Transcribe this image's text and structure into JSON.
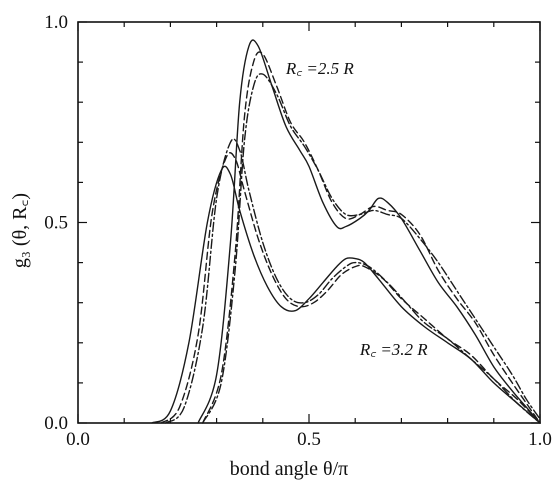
{
  "chart_data": {
    "type": "line",
    "xlabel": "bond angle θ/π",
    "ylabel": "g₃ (θ, R꜀)",
    "xlim": [
      0.0,
      1.0
    ],
    "ylim": [
      0.0,
      1.0
    ],
    "grid": false,
    "x_ticks": [
      "0.0",
      "0.5",
      "1.0"
    ],
    "y_ticks": [
      "0.0",
      "0.5",
      "1.0"
    ],
    "annotations": [
      {
        "text": "R꜀ =2.5 R",
        "x": 0.45,
        "y": 0.87
      },
      {
        "text": "R꜀ =3.2 R",
        "x": 0.61,
        "y": 0.17
      }
    ],
    "series": [
      {
        "group": "Rc=2.5R",
        "style": "solid",
        "x": [
          0.26,
          0.3,
          0.33,
          0.35,
          0.37,
          0.39,
          0.42,
          0.45,
          0.48,
          0.5,
          0.53,
          0.56,
          0.58,
          0.61,
          0.63,
          0.65,
          0.67,
          0.7,
          0.74,
          0.78,
          0.82,
          0.86,
          0.9,
          0.94,
          0.97,
          1.0
        ],
        "y": [
          0.0,
          0.12,
          0.45,
          0.8,
          0.94,
          0.94,
          0.84,
          0.74,
          0.68,
          0.64,
          0.55,
          0.49,
          0.49,
          0.51,
          0.53,
          0.56,
          0.55,
          0.51,
          0.43,
          0.35,
          0.29,
          0.22,
          0.14,
          0.08,
          0.04,
          0.0
        ]
      },
      {
        "group": "Rc=2.5R",
        "style": "dash",
        "x": [
          0.27,
          0.31,
          0.34,
          0.36,
          0.38,
          0.4,
          0.43,
          0.46,
          0.49,
          0.52,
          0.55,
          0.58,
          0.61,
          0.64,
          0.67,
          0.7,
          0.74,
          0.78,
          0.82,
          0.86,
          0.9,
          0.94,
          0.97,
          1.0
        ],
        "y": [
          0.0,
          0.12,
          0.42,
          0.76,
          0.9,
          0.92,
          0.84,
          0.75,
          0.7,
          0.63,
          0.55,
          0.51,
          0.52,
          0.54,
          0.53,
          0.52,
          0.47,
          0.38,
          0.31,
          0.25,
          0.17,
          0.1,
          0.05,
          0.0
        ]
      },
      {
        "group": "Rc=2.5R",
        "style": "dashdot",
        "x": [
          0.27,
          0.31,
          0.34,
          0.36,
          0.38,
          0.4,
          0.43,
          0.46,
          0.49,
          0.52,
          0.55,
          0.58,
          0.61,
          0.64,
          0.67,
          0.7,
          0.74,
          0.78,
          0.82,
          0.86,
          0.9,
          0.94,
          0.97,
          1.0
        ],
        "y": [
          0.0,
          0.1,
          0.38,
          0.7,
          0.84,
          0.87,
          0.82,
          0.74,
          0.69,
          0.63,
          0.56,
          0.52,
          0.52,
          0.53,
          0.52,
          0.51,
          0.46,
          0.4,
          0.33,
          0.26,
          0.19,
          0.12,
          0.06,
          0.01
        ]
      },
      {
        "group": "Rc=3.2R",
        "style": "solid",
        "x": [
          0.16,
          0.2,
          0.24,
          0.28,
          0.31,
          0.33,
          0.35,
          0.38,
          0.41,
          0.44,
          0.47,
          0.5,
          0.53,
          0.56,
          0.58,
          0.6,
          0.62,
          0.65,
          0.7,
          0.75,
          0.8,
          0.85,
          0.9,
          0.95,
          1.0
        ],
        "y": [
          0.0,
          0.03,
          0.2,
          0.5,
          0.63,
          0.62,
          0.53,
          0.42,
          0.34,
          0.29,
          0.28,
          0.31,
          0.35,
          0.39,
          0.41,
          0.41,
          0.4,
          0.36,
          0.29,
          0.24,
          0.2,
          0.16,
          0.1,
          0.05,
          0.0
        ]
      },
      {
        "group": "Rc=3.2R",
        "style": "dash",
        "x": [
          0.18,
          0.22,
          0.26,
          0.29,
          0.32,
          0.34,
          0.36,
          0.39,
          0.42,
          0.45,
          0.48,
          0.51,
          0.54,
          0.57,
          0.6,
          0.62,
          0.66,
          0.7,
          0.75,
          0.8,
          0.85,
          0.9,
          0.95,
          1.0
        ],
        "y": [
          0.0,
          0.04,
          0.22,
          0.52,
          0.66,
          0.66,
          0.58,
          0.46,
          0.37,
          0.31,
          0.29,
          0.3,
          0.33,
          0.37,
          0.39,
          0.39,
          0.36,
          0.31,
          0.26,
          0.21,
          0.17,
          0.11,
          0.06,
          0.0
        ]
      },
      {
        "group": "Rc=3.2R",
        "style": "dashdot",
        "x": [
          0.19,
          0.23,
          0.27,
          0.3,
          0.33,
          0.35,
          0.37,
          0.4,
          0.43,
          0.46,
          0.49,
          0.52,
          0.55,
          0.58,
          0.6,
          0.63,
          0.67,
          0.71,
          0.75,
          0.8,
          0.85,
          0.9,
          0.95,
          1.0
        ],
        "y": [
          0.0,
          0.04,
          0.24,
          0.56,
          0.7,
          0.68,
          0.58,
          0.45,
          0.36,
          0.31,
          0.3,
          0.32,
          0.36,
          0.39,
          0.4,
          0.39,
          0.35,
          0.3,
          0.25,
          0.21,
          0.16,
          0.11,
          0.05,
          0.0
        ]
      }
    ]
  }
}
